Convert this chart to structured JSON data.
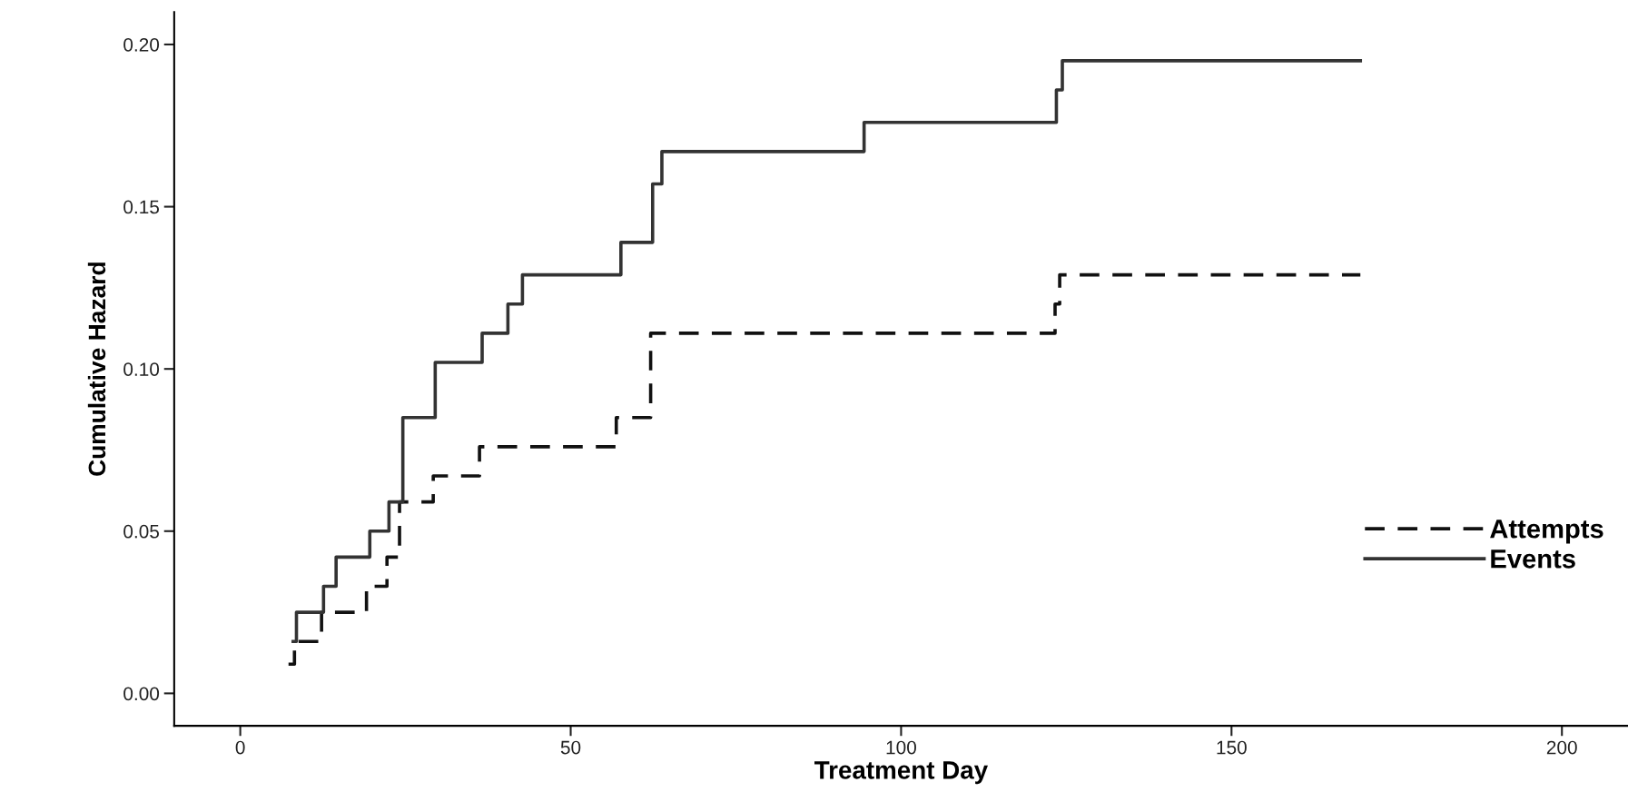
{
  "chart_data": {
    "type": "step",
    "xlabel": "Treatment Day",
    "ylabel": "Cumulative Hazard",
    "xlim": [
      -10,
      210
    ],
    "xticks": [
      0,
      50,
      100,
      150,
      200
    ],
    "ylim": [
      -0.01,
      0.21
    ],
    "yticks": [
      {
        "value": 0,
        "label": "0.00"
      },
      {
        "value": 0.05,
        "label": "0.05"
      },
      {
        "value": 0.1,
        "label": "0.10"
      },
      {
        "value": 0.15,
        "label": "0.15"
      },
      {
        "value": 0.2,
        "label": "0.20"
      }
    ],
    "grid": false,
    "legend": "lower right",
    "series": [
      {
        "name": "Attempts",
        "color": "#111111",
        "line_style": "dashed",
        "x": [
          7.3,
          8.2,
          12.3,
          19.1,
          22.2,
          24.1,
          29.2,
          36.2,
          56.9,
          62.1,
          123.3,
          124.0,
          169.5
        ],
        "values": [
          0.009,
          0.016,
          0.025,
          0.033,
          0.042,
          0.059,
          0.067,
          0.076,
          0.085,
          0.111,
          0.12,
          0.129,
          0.129
        ]
      },
      {
        "name": "Events",
        "color": "#333333",
        "line_style": "solid",
        "x": [
          8.0,
          8.5,
          12.6,
          14.5,
          19.6,
          22.5,
          24.6,
          29.5,
          36.6,
          40.5,
          42.7,
          57.6,
          62.4,
          63.8,
          94.4,
          123.5,
          124.4,
          169.5
        ],
        "values": [
          0.016,
          0.025,
          0.033,
          0.042,
          0.05,
          0.059,
          0.085,
          0.102,
          0.111,
          0.12,
          0.129,
          0.139,
          0.157,
          0.167,
          0.176,
          0.186,
          0.195,
          0.195
        ]
      }
    ]
  }
}
